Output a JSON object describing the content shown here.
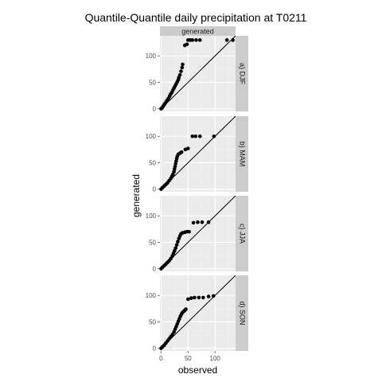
{
  "chart_data": {
    "type": "scatter",
    "title": "Quantile-Quantile daily precipitation at T0211",
    "xlabel": "observed",
    "ylabel": "generated",
    "column_strip": "generated",
    "xlim": [
      -2,
      138
    ],
    "ylim": [
      -5,
      138
    ],
    "x_ticks": [
      0,
      50,
      100
    ],
    "y_ticks": [
      0,
      50,
      100
    ],
    "grid": true,
    "reference_line": "y = x",
    "panel_background": "#ebebeb",
    "strip_background": "#cccccc",
    "point_color": "#000000",
    "panels": [
      {
        "label": "a) DJF",
        "points": [
          [
            0,
            0
          ],
          [
            2,
            2
          ],
          [
            4,
            5
          ],
          [
            6,
            8
          ],
          [
            8,
            11
          ],
          [
            10,
            14
          ],
          [
            12,
            17
          ],
          [
            14,
            20
          ],
          [
            16,
            24
          ],
          [
            18,
            28
          ],
          [
            20,
            31
          ],
          [
            22,
            35
          ],
          [
            24,
            39
          ],
          [
            26,
            43
          ],
          [
            28,
            47
          ],
          [
            30,
            51
          ],
          [
            32,
            55
          ],
          [
            33,
            59
          ],
          [
            35,
            64
          ],
          [
            37,
            71
          ],
          [
            39,
            78
          ],
          [
            40,
            84
          ],
          [
            44,
            120
          ],
          [
            48,
            122
          ],
          [
            50,
            130
          ],
          [
            54,
            130
          ],
          [
            58,
            130
          ],
          [
            65,
            130
          ],
          [
            72,
            130
          ],
          [
            122,
            130
          ],
          [
            133,
            130
          ]
        ]
      },
      {
        "label": "b) MAM",
        "points": [
          [
            0,
            0
          ],
          [
            3,
            3
          ],
          [
            6,
            6
          ],
          [
            9,
            9
          ],
          [
            12,
            12
          ],
          [
            15,
            16
          ],
          [
            18,
            20
          ],
          [
            20,
            24
          ],
          [
            22,
            28
          ],
          [
            24,
            33
          ],
          [
            25,
            38
          ],
          [
            26,
            43
          ],
          [
            27,
            48
          ],
          [
            28,
            53
          ],
          [
            29,
            58
          ],
          [
            30,
            62
          ],
          [
            32,
            66
          ],
          [
            35,
            68
          ],
          [
            38,
            70
          ],
          [
            45,
            75
          ],
          [
            50,
            77
          ],
          [
            58,
            100
          ],
          [
            64,
            100
          ],
          [
            72,
            100
          ],
          [
            98,
            100
          ]
        ]
      },
      {
        "label": "c) JJA",
        "points": [
          [
            0,
            0
          ],
          [
            3,
            3
          ],
          [
            6,
            6
          ],
          [
            9,
            9
          ],
          [
            12,
            12
          ],
          [
            15,
            15
          ],
          [
            18,
            19
          ],
          [
            21,
            24
          ],
          [
            23,
            29
          ],
          [
            25,
            34
          ],
          [
            27,
            39
          ],
          [
            29,
            45
          ],
          [
            31,
            51
          ],
          [
            33,
            57
          ],
          [
            35,
            62
          ],
          [
            37,
            66
          ],
          [
            40,
            68
          ],
          [
            44,
            69
          ],
          [
            48,
            70
          ],
          [
            52,
            70
          ],
          [
            60,
            87
          ],
          [
            68,
            88
          ],
          [
            76,
            88
          ],
          [
            88,
            88
          ]
        ]
      },
      {
        "label": "d) SON",
        "points": [
          [
            0,
            0
          ],
          [
            3,
            3
          ],
          [
            6,
            6
          ],
          [
            9,
            10
          ],
          [
            12,
            14
          ],
          [
            15,
            18
          ],
          [
            18,
            22
          ],
          [
            21,
            26
          ],
          [
            24,
            31
          ],
          [
            26,
            36
          ],
          [
            28,
            41
          ],
          [
            30,
            46
          ],
          [
            32,
            51
          ],
          [
            34,
            56
          ],
          [
            36,
            61
          ],
          [
            38,
            65
          ],
          [
            40,
            68
          ],
          [
            42,
            70
          ],
          [
            44,
            72
          ],
          [
            46,
            74
          ],
          [
            50,
            93
          ],
          [
            56,
            95
          ],
          [
            62,
            96
          ],
          [
            70,
            96
          ],
          [
            78,
            96
          ],
          [
            88,
            98
          ],
          [
            97,
            99
          ]
        ]
      }
    ]
  }
}
